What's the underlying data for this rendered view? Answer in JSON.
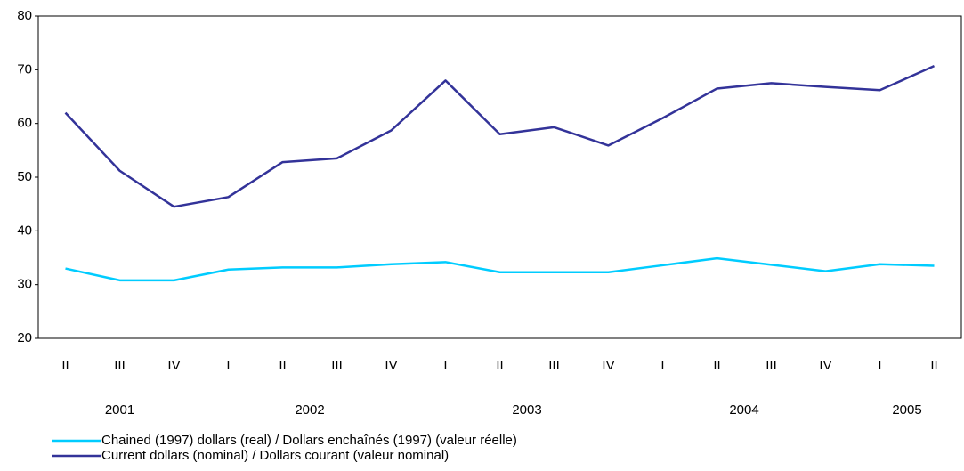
{
  "chart_data": {
    "type": "line",
    "categories": [
      "II",
      "III",
      "IV",
      "I",
      "II",
      "III",
      "IV",
      "I",
      "II",
      "III",
      "IV",
      "I",
      "II",
      "III",
      "IV",
      "I",
      "II"
    ],
    "year_groups": [
      {
        "label": "2001",
        "count": 3
      },
      {
        "label": "2002",
        "count": 4
      },
      {
        "label": "2003",
        "count": 4
      },
      {
        "label": "2004",
        "count": 4
      },
      {
        "label": "2005",
        "count": 2
      }
    ],
    "series": [
      {
        "name": "Chained (1997) dollars (real) / Dollars enchaînés (1997) (valeur réelle)",
        "color": "#00ccff",
        "values": [
          33,
          30.8,
          30.8,
          32.8,
          33.2,
          33.2,
          33.8,
          34.2,
          32.3,
          32.3,
          32.3,
          33.6,
          34.9,
          33.7,
          32.5,
          33.8,
          33.5
        ]
      },
      {
        "name": "Current dollars (nominal) / Dollars courant (valeur nominal)",
        "color": "#333399",
        "values": [
          62,
          51.2,
          44.5,
          46.3,
          52.8,
          53.5,
          58.7,
          68,
          58,
          59.3,
          55.9,
          61,
          66.5,
          67.5,
          66.8,
          66.2,
          70.7
        ]
      }
    ],
    "ylim": [
      20,
      80
    ],
    "yticks": [
      20,
      30,
      40,
      50,
      60,
      70,
      80
    ],
    "grid": false,
    "legend": "bottom-left"
  }
}
